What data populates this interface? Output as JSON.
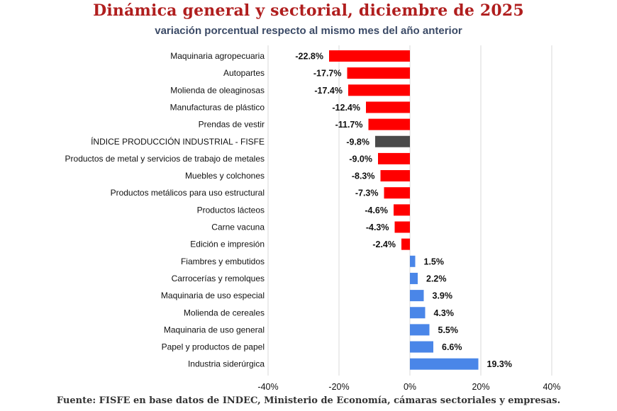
{
  "header": {
    "title": "Dinámica general y sectorial, diciembre de 2025",
    "subtitle": "variación porcentual respecto al mismo mes del  año anterior"
  },
  "footer": {
    "source": "Fuente: FISFE en base datos de INDEC, Ministerio de Economía, cámaras sectoriales y empresas."
  },
  "colors": {
    "negative": "#ff0000",
    "positive": "#4a86e8",
    "total": "#4a4a4a",
    "grid": "#d9d9d9"
  },
  "chart_data": {
    "type": "bar",
    "orientation": "horizontal",
    "title": "Dinámica general y sectorial, diciembre de 2025",
    "subtitle": "variación porcentual respecto al mismo mes del  año anterior",
    "xlim": [
      -40,
      40
    ],
    "xticks": [
      -40,
      -20,
      0,
      20,
      40
    ],
    "xtick_labels": [
      "-40%",
      "-20%",
      "0%",
      "20%",
      "40%"
    ],
    "grid": "vertical",
    "legend": "none",
    "categories": [
      "Maquinaria agropecuaria",
      "Autopartes",
      "Molienda de oleaginosas",
      "Manufacturas de plástico",
      "Prendas de vestir",
      "ÍNDICE PRODUCCIÓN INDUSTRIAL - FISFE",
      "Productos de metal y servicios de trabajo de metales",
      "Muebles y colchones",
      "Productos metálicos para uso estructural",
      "Productos lácteos",
      "Carne vacuna",
      "Edición e impresión",
      "Fiambres y embutidos",
      "Carrocerías y remolques",
      "Maquinaria de uso especial",
      "Molienda de cereales",
      "Maquinaria de uso general",
      "Papel y productos de papel",
      "Industria siderúrgica"
    ],
    "values": [
      -22.8,
      -17.7,
      -17.4,
      -12.4,
      -11.7,
      -9.8,
      -9.0,
      -8.3,
      -7.3,
      -4.6,
      -4.3,
      -2.4,
      1.5,
      2.2,
      3.9,
      4.3,
      5.5,
      6.6,
      19.3
    ],
    "value_labels": [
      "-22.8%",
      "-17.7%",
      "-17.4%",
      "-12.4%",
      "-11.7%",
      "-9.8%",
      "-9.0%",
      "-8.3%",
      "-7.3%",
      "-4.6%",
      "-4.3%",
      "-2.4%",
      "1.5%",
      "2.2%",
      "3.9%",
      "4.3%",
      "5.5%",
      "6.6%",
      "19.3%"
    ],
    "highlight_index": 5
  }
}
